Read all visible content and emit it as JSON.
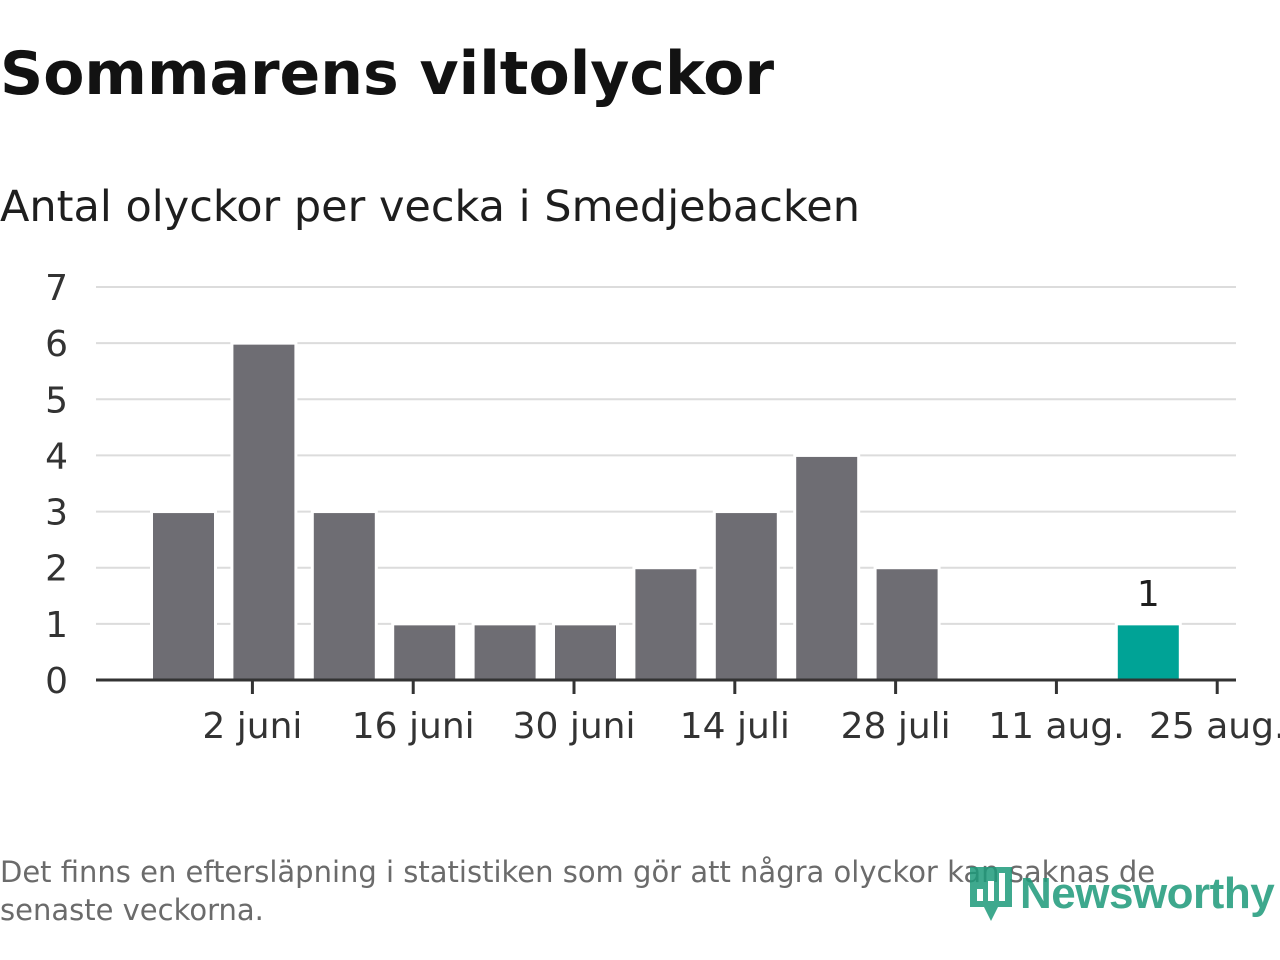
{
  "title": "Sommarens viltolyckor",
  "subtitle": "Antal olyckor per vecka i Smedjebacken",
  "footnote": "Det finns en eftersläpning i statistiken som gör att några olyckor kan saknas de senaste veckorna.",
  "logo": {
    "text": "Newsworthy",
    "icon": "bar-chart-pin-icon"
  },
  "colors": {
    "bar": "#6e6d73",
    "highlight": "#00a396",
    "grid": "#dcdcdc",
    "axis": "#333333",
    "tick_text": "#333333"
  },
  "chart_data": {
    "type": "bar",
    "title": "Sommarens viltolyckor",
    "subtitle": "Antal olyckor per vecka i Smedjebacken",
    "x": [
      "2024-05-27",
      "2024-06-03",
      "2024-06-10",
      "2024-06-17",
      "2024-06-24",
      "2024-07-01",
      "2024-07-08",
      "2024-07-15",
      "2024-07-22",
      "2024-07-29",
      "2024-08-05",
      "2024-08-12",
      "2024-08-19"
    ],
    "values": [
      3,
      6,
      3,
      1,
      1,
      1,
      2,
      3,
      4,
      2,
      0,
      0,
      1
    ],
    "highlight_index": 12,
    "data_labels": [
      {
        "index": 12,
        "text": "1"
      }
    ],
    "x_ticks": [
      {
        "label": "2 juni",
        "value": "2024-06-02"
      },
      {
        "label": "16 juni",
        "value": "2024-06-16"
      },
      {
        "label": "30 juni",
        "value": "2024-06-30"
      },
      {
        "label": "14 juli",
        "value": "2024-07-14"
      },
      {
        "label": "28 juli",
        "value": "2024-07-28"
      },
      {
        "label": "11 aug.",
        "value": "2024-08-11"
      },
      {
        "label": "25 aug.",
        "value": "2024-08-25"
      }
    ],
    "y_ticks": [
      "0",
      "1",
      "2",
      "3",
      "4",
      "5",
      "6",
      "7"
    ],
    "ylim": [
      0,
      7
    ],
    "xlabel": "",
    "ylabel": "",
    "grid": true,
    "legend": "none"
  }
}
